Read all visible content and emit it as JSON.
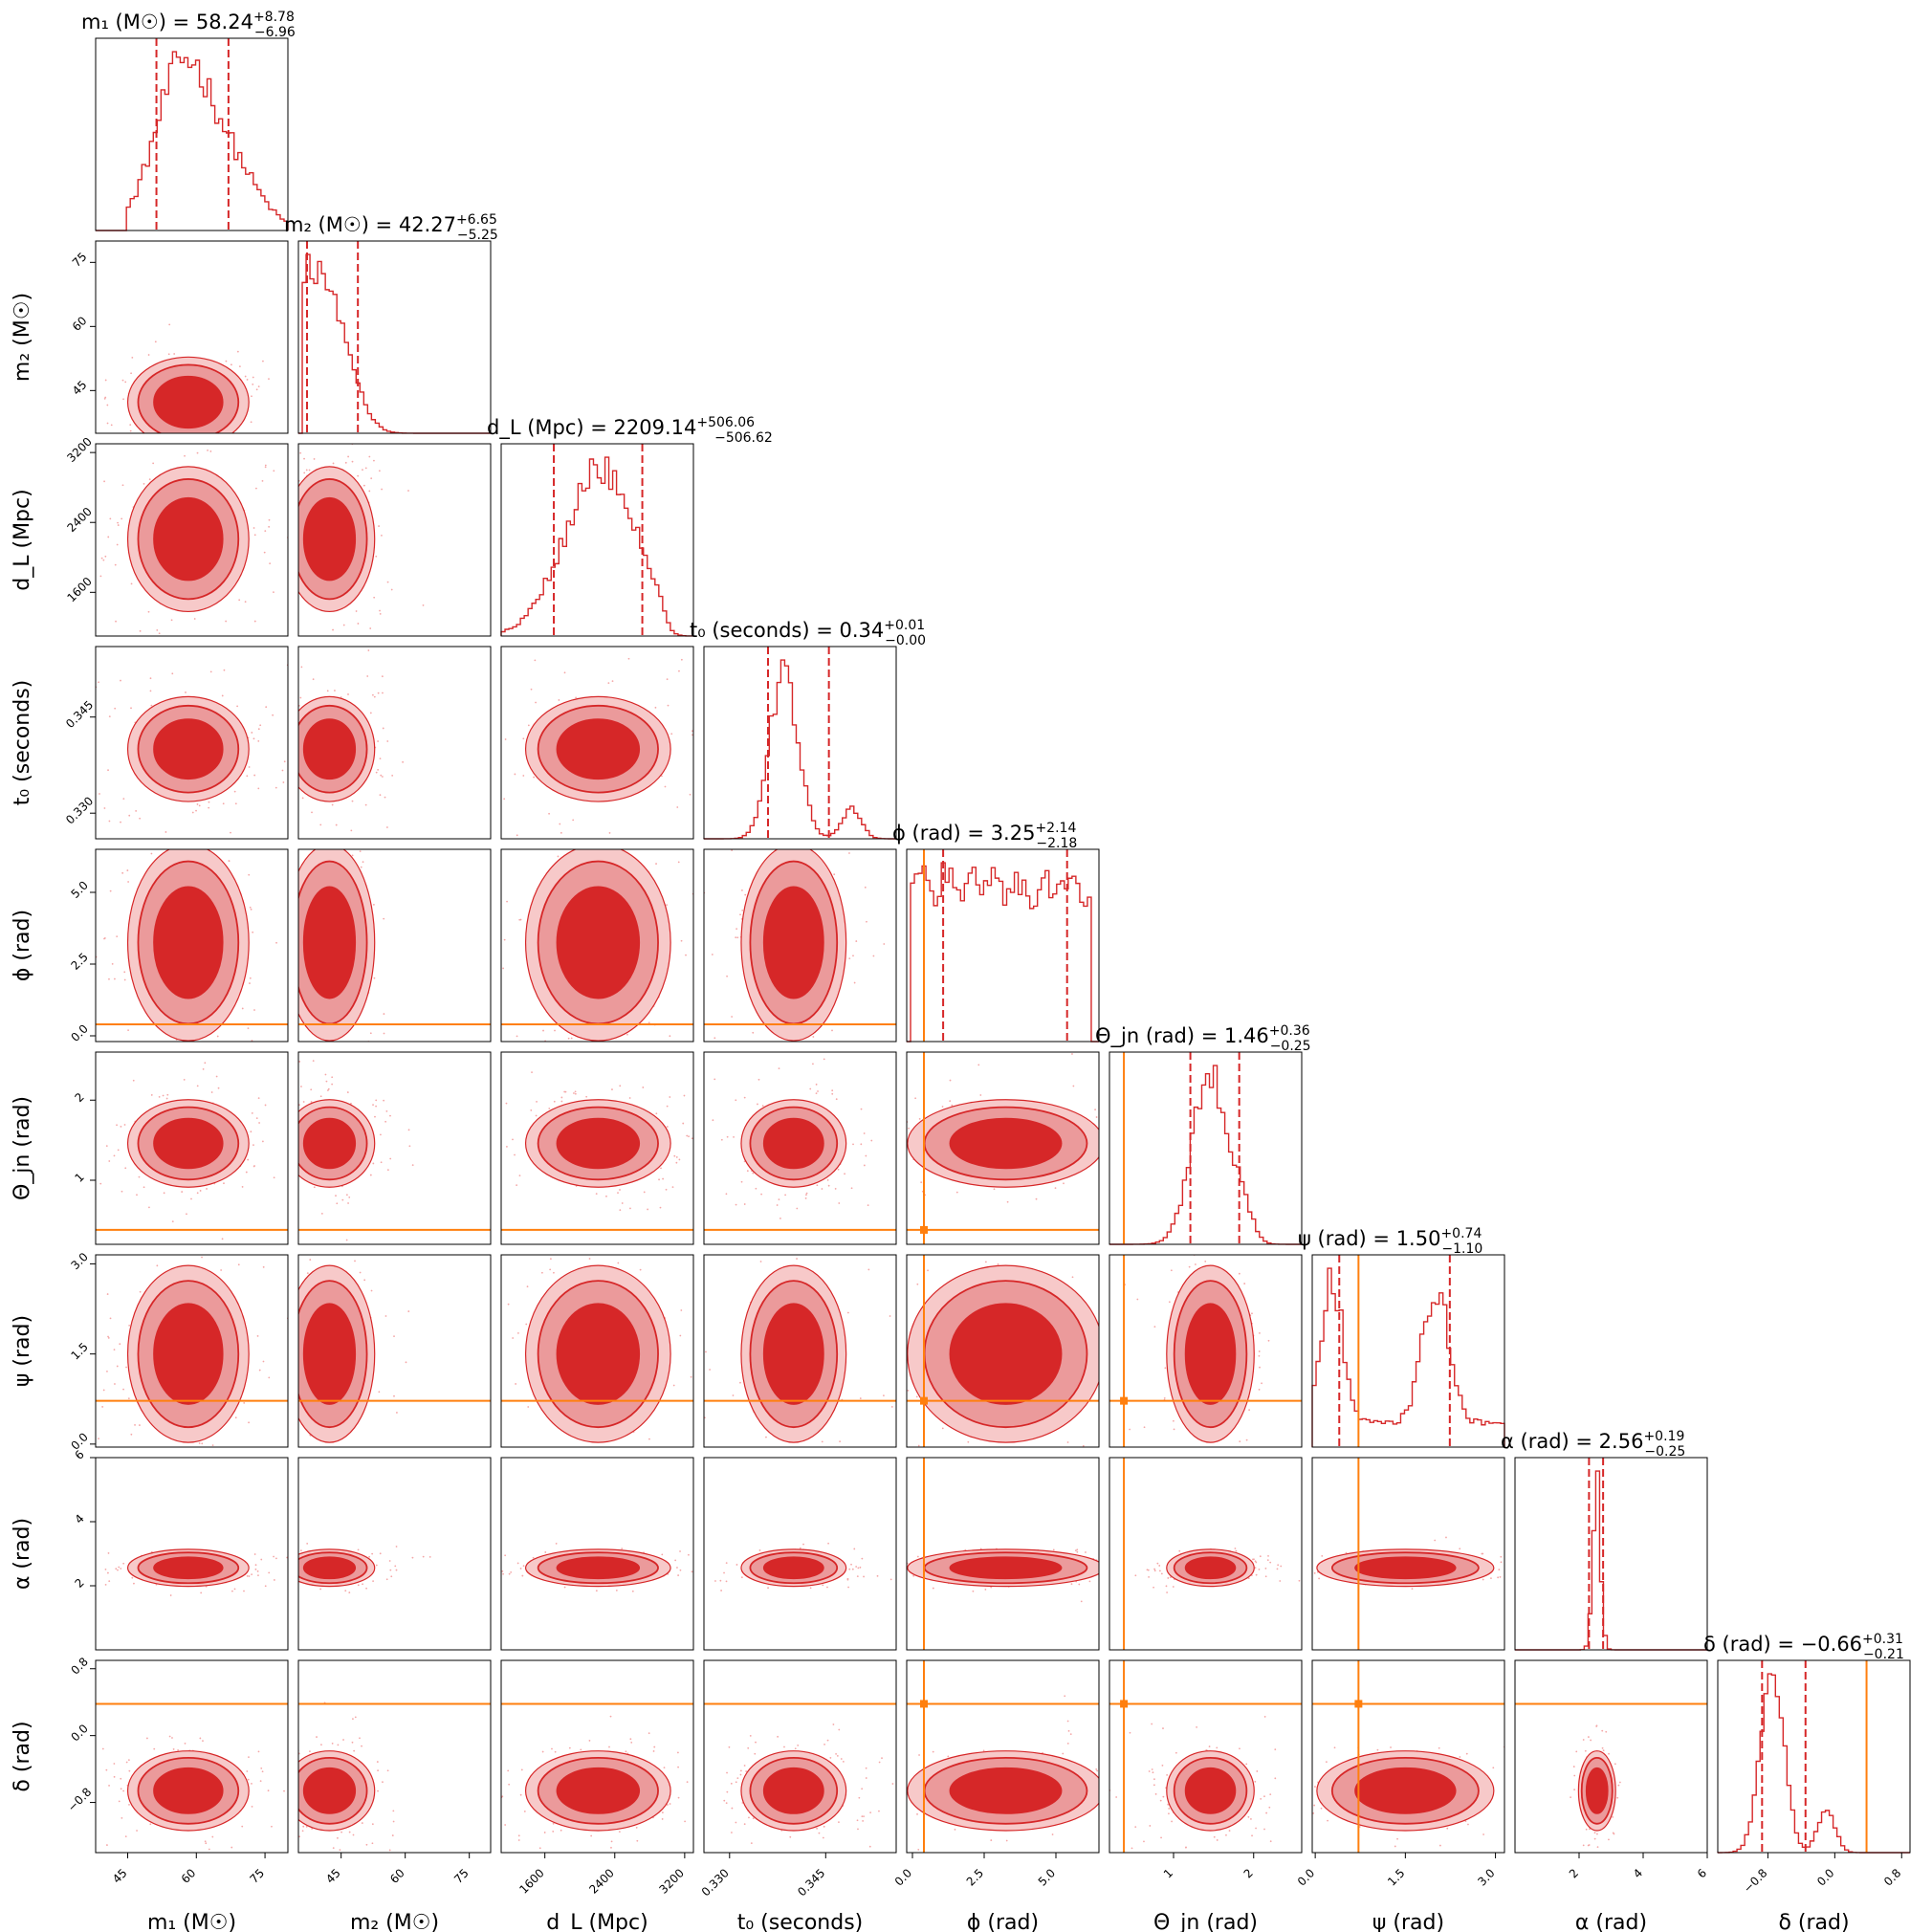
{
  "chart_data": {
    "type": "corner",
    "colors": {
      "posterior": "#d62728",
      "truth": "#ff7f0e",
      "frame": "#000000"
    },
    "params": [
      {
        "id": "m1",
        "label": "m₁ (M☉)",
        "title": "m₁ (M☉) = 58.24",
        "sup": "+8.78",
        "sub": "−6.96",
        "median": 58.24,
        "lo": 51.28,
        "hi": 67.02,
        "range": [
          38,
          80
        ],
        "ticks": [
          45,
          60,
          75
        ],
        "tick_labels": [
          "45",
          "60",
          "75"
        ],
        "truth": null
      },
      {
        "id": "m2",
        "label": "m₂ (M☉)",
        "title": "m₂ (M☉) = 42.27",
        "sup": "+6.65",
        "sub": "−5.25",
        "median": 42.27,
        "lo": 37.02,
        "hi": 48.92,
        "range": [
          35,
          80
        ],
        "ticks": [
          45,
          60,
          75
        ],
        "tick_labels": [
          "45",
          "60",
          "75"
        ],
        "truth": null
      },
      {
        "id": "dL",
        "label": "d_L (Mpc)",
        "title": "d_L (Mpc) = 2209.14",
        "sup": "+506.06",
        "sub": "−506.62",
        "median": 2209.14,
        "lo": 1702.52,
        "hi": 2715.2,
        "range": [
          1100,
          3300
        ],
        "ticks": [
          1600,
          2400,
          3200
        ],
        "tick_labels": [
          "1600",
          "2400",
          "3200"
        ],
        "truth": null
      },
      {
        "id": "t0",
        "label": "t₀ (seconds)",
        "title": "t₀ (seconds) = 0.34",
        "sup": "+0.01",
        "sub": "−0.00",
        "median": 0.34,
        "lo": 0.336,
        "hi": 0.3455,
        "range": [
          0.326,
          0.356
        ],
        "ticks": [
          0.33,
          0.345
        ],
        "tick_labels": [
          "0.330",
          "0.345"
        ],
        "truth": null
      },
      {
        "id": "phi",
        "label": "ϕ (rad)",
        "title": "ϕ (rad) = 3.25",
        "sup": "+2.14",
        "sub": "−2.18",
        "median": 3.25,
        "lo": 1.07,
        "hi": 5.39,
        "range": [
          -0.2,
          6.5
        ],
        "ticks": [
          0,
          2.5,
          5
        ],
        "tick_labels": [
          "0.0",
          "2.5",
          "5.0"
        ],
        "truth": 0.4
      },
      {
        "id": "theta",
        "label": "Θ_jn (rad)",
        "title": "Θ_jn (rad) = 1.46",
        "sup": "+0.36",
        "sub": "−0.25",
        "median": 1.46,
        "lo": 1.21,
        "hi": 1.82,
        "range": [
          0.2,
          2.6
        ],
        "ticks": [
          1,
          2
        ],
        "tick_labels": [
          "1",
          "2"
        ],
        "truth": 0.38
      },
      {
        "id": "psi",
        "label": "ψ (rad)",
        "title": "ψ (rad) = 1.50",
        "sup": "+0.74",
        "sub": "−1.10",
        "median": 1.5,
        "lo": 0.4,
        "hi": 2.24,
        "range": [
          -0.05,
          3.15
        ],
        "ticks": [
          0,
          1.5,
          3
        ],
        "tick_labels": [
          "0.0",
          "1.5",
          "3.0"
        ],
        "truth": 0.72
      },
      {
        "id": "alpha",
        "label": "α (rad)",
        "title": "α (rad) = 2.56",
        "sup": "+0.19",
        "sub": "−0.25",
        "median": 2.56,
        "lo": 2.31,
        "hi": 2.75,
        "range": [
          0,
          6
        ],
        "ticks": [
          2,
          4,
          6
        ],
        "tick_labels": [
          "2",
          "4",
          "6"
        ],
        "truth": null
      },
      {
        "id": "delta",
        "label": "δ (rad)",
        "title": "δ (rad) = −0.66",
        "sup": "+0.31",
        "sub": "−0.21",
        "median": -0.66,
        "lo": -0.87,
        "hi": -0.35,
        "range": [
          -1.4,
          0.9
        ],
        "ticks": [
          -0.8,
          0,
          0.8
        ],
        "tick_labels": [
          "−0.8",
          "0.0",
          "0.8"
        ],
        "truth": 0.38
      }
    ]
  }
}
